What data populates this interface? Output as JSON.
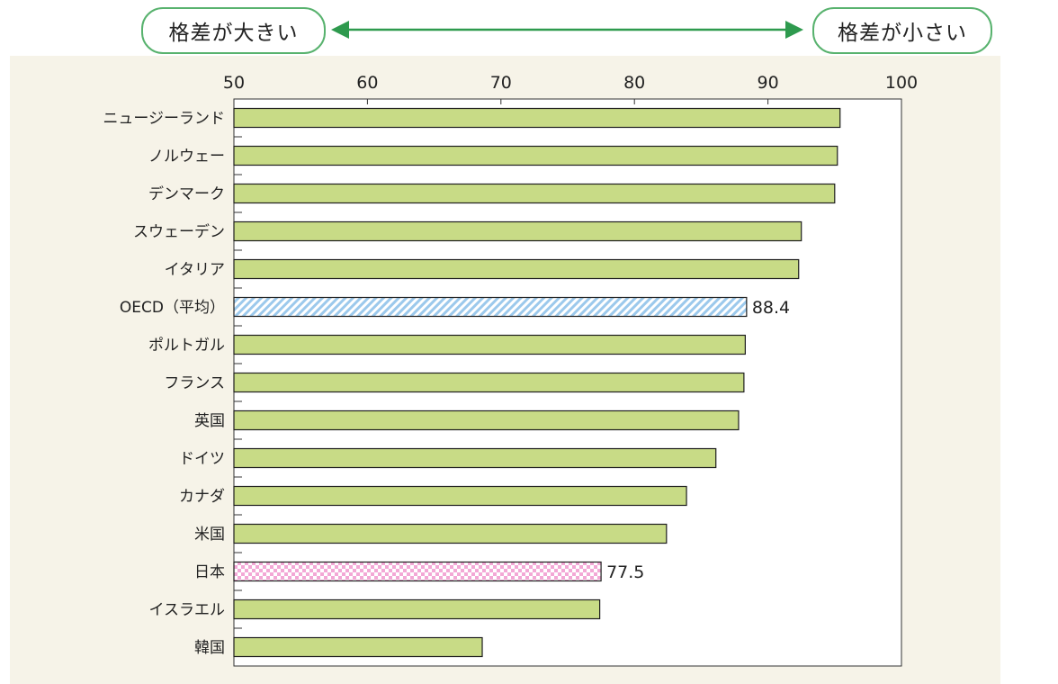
{
  "header": {
    "left_label": "格差が大きい",
    "right_label": "格差が小さい"
  },
  "colors": {
    "bar": "#c8db86",
    "bar_border": "#1e1e1e",
    "oecd_pattern": "#9cc9ec",
    "japan_pattern": "#f3a8d6",
    "arrow": "#2e9a4e",
    "pill_border": "#58b26e",
    "panel_bg": "#f6f3e8"
  },
  "chart_data": {
    "type": "bar",
    "orientation": "horizontal",
    "xlim": [
      50,
      100
    ],
    "xticks": [
      "50",
      "60",
      "70",
      "80",
      "90",
      "100"
    ],
    "categories": [
      "ニュージーランド",
      "ノルウェー",
      "デンマーク",
      "スウェーデン",
      "イタリア",
      "OECD（平均）",
      "ポルトガル",
      "フランス",
      "英国",
      "ドイツ",
      "カナダ",
      "米国",
      "日本",
      "イスラエル",
      "韓国"
    ],
    "values": [
      95.4,
      95.2,
      95.0,
      92.5,
      92.3,
      88.4,
      88.3,
      88.2,
      87.8,
      86.1,
      83.9,
      82.4,
      77.5,
      77.4,
      68.6
    ],
    "highlight": {
      "OECD（平均）": "oecd",
      "日本": "japan"
    },
    "data_labels": {
      "OECD（平均）": "88.4",
      "日本": "77.5"
    },
    "grid": false
  }
}
